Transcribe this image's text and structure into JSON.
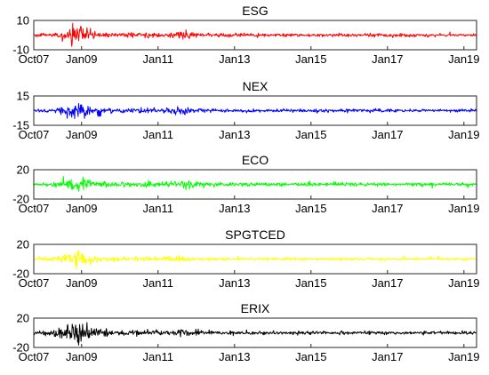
{
  "chart_data": [
    {
      "type": "line",
      "title": "ESG",
      "color": "#ff0000",
      "ylim": [
        -10,
        10
      ],
      "yticks": [
        "10",
        "-10"
      ],
      "xrange": [
        2007.75,
        2019.33
      ],
      "xticks": [
        {
          "value": 2007.75,
          "label": "Oct07"
        },
        {
          "value": 2009.0,
          "label": "Jan09"
        },
        {
          "value": 2011.0,
          "label": "Jan11"
        },
        {
          "value": 2013.0,
          "label": "Jan13"
        },
        {
          "value": 2015.0,
          "label": "Jan15"
        },
        {
          "value": 2017.0,
          "label": "Jan17"
        },
        {
          "value": 2019.0,
          "label": "Jan19"
        }
      ],
      "volatility_profile": [
        {
          "x": 2007.75,
          "amplitude": 1.0
        },
        {
          "x": 2008.3,
          "amplitude": 1.5
        },
        {
          "x": 2008.7,
          "amplitude": 5.5
        },
        {
          "x": 2008.95,
          "amplitude": 6.5
        },
        {
          "x": 2009.3,
          "amplitude": 3.0
        },
        {
          "x": 2009.8,
          "amplitude": 1.6
        },
        {
          "x": 2010.4,
          "amplitude": 1.8
        },
        {
          "x": 2011.1,
          "amplitude": 1.5
        },
        {
          "x": 2011.7,
          "amplitude": 3.5
        },
        {
          "x": 2012.2,
          "amplitude": 1.4
        },
        {
          "x": 2014.0,
          "amplitude": 1.0
        },
        {
          "x": 2016.5,
          "amplitude": 1.3
        },
        {
          "x": 2018.2,
          "amplitude": 1.0
        },
        {
          "x": 2019.33,
          "amplitude": 1.0
        }
      ]
    },
    {
      "type": "line",
      "title": "NEX",
      "color": "#0000ff",
      "ylim": [
        -15,
        15
      ],
      "yticks": [
        "15",
        "-15"
      ],
      "xrange": [
        2007.75,
        2019.33
      ],
      "xticks": [
        {
          "value": 2007.75,
          "label": "Oct07"
        },
        {
          "value": 2009.0,
          "label": "Jan09"
        },
        {
          "value": 2011.0,
          "label": "Jan11"
        },
        {
          "value": 2013.0,
          "label": "Jan13"
        },
        {
          "value": 2015.0,
          "label": "Jan15"
        },
        {
          "value": 2017.0,
          "label": "Jan17"
        },
        {
          "value": 2019.0,
          "label": "Jan19"
        }
      ],
      "volatility_profile": [
        {
          "x": 2007.75,
          "amplitude": 1.5
        },
        {
          "x": 2008.3,
          "amplitude": 2.5
        },
        {
          "x": 2008.7,
          "amplitude": 8.0
        },
        {
          "x": 2008.95,
          "amplitude": 10.0
        },
        {
          "x": 2009.3,
          "amplitude": 4.5
        },
        {
          "x": 2009.8,
          "amplitude": 2.5
        },
        {
          "x": 2010.4,
          "amplitude": 3.0
        },
        {
          "x": 2011.1,
          "amplitude": 2.5
        },
        {
          "x": 2011.7,
          "amplitude": 5.5
        },
        {
          "x": 2012.2,
          "amplitude": 2.0
        },
        {
          "x": 2014.0,
          "amplitude": 1.5
        },
        {
          "x": 2016.5,
          "amplitude": 2.0
        },
        {
          "x": 2018.2,
          "amplitude": 1.5
        },
        {
          "x": 2019.33,
          "amplitude": 1.5
        }
      ]
    },
    {
      "type": "line",
      "title": "ECO",
      "color": "#00ff00",
      "ylim": [
        -20,
        20
      ],
      "yticks": [
        "20",
        "-20"
      ],
      "xrange": [
        2007.75,
        2019.33
      ],
      "xticks": [
        {
          "value": 2007.75,
          "label": "Oct07"
        },
        {
          "value": 2009.0,
          "label": "Jan09"
        },
        {
          "value": 2011.0,
          "label": "Jan11"
        },
        {
          "value": 2013.0,
          "label": "Jan13"
        },
        {
          "value": 2015.0,
          "label": "Jan15"
        },
        {
          "value": 2017.0,
          "label": "Jan17"
        },
        {
          "value": 2019.0,
          "label": "Jan19"
        }
      ],
      "volatility_profile": [
        {
          "x": 2007.75,
          "amplitude": 2.5
        },
        {
          "x": 2008.3,
          "amplitude": 3.5
        },
        {
          "x": 2008.7,
          "amplitude": 9.0
        },
        {
          "x": 2008.95,
          "amplitude": 11.0
        },
        {
          "x": 2009.3,
          "amplitude": 6.0
        },
        {
          "x": 2009.8,
          "amplitude": 3.5
        },
        {
          "x": 2010.4,
          "amplitude": 4.0
        },
        {
          "x": 2011.1,
          "amplitude": 3.5
        },
        {
          "x": 2011.7,
          "amplitude": 6.5
        },
        {
          "x": 2012.2,
          "amplitude": 3.0
        },
        {
          "x": 2014.0,
          "amplitude": 2.5
        },
        {
          "x": 2016.5,
          "amplitude": 2.5
        },
        {
          "x": 2018.2,
          "amplitude": 2.0
        },
        {
          "x": 2019.33,
          "amplitude": 2.5
        }
      ]
    },
    {
      "type": "line",
      "title": "SPGTCED",
      "color": "#ffff00",
      "ylim": [
        -20,
        20
      ],
      "yticks": [
        "20",
        "-20"
      ],
      "xrange": [
        2007.75,
        2019.33
      ],
      "xticks": [
        {
          "value": 2007.75,
          "label": "Oct07"
        },
        {
          "value": 2009.0,
          "label": "Jan09"
        },
        {
          "value": 2011.0,
          "label": "Jan11"
        },
        {
          "value": 2013.0,
          "label": "Jan13"
        },
        {
          "value": 2015.0,
          "label": "Jan15"
        },
        {
          "value": 2017.0,
          "label": "Jan17"
        },
        {
          "value": 2019.0,
          "label": "Jan19"
        }
      ],
      "volatility_profile": [
        {
          "x": 2007.75,
          "amplitude": 2.0
        },
        {
          "x": 2008.3,
          "amplitude": 3.5
        },
        {
          "x": 2008.7,
          "amplitude": 10.0
        },
        {
          "x": 2008.95,
          "amplitude": 12.0
        },
        {
          "x": 2009.3,
          "amplitude": 6.0
        },
        {
          "x": 2009.8,
          "amplitude": 3.0
        },
        {
          "x": 2010.4,
          "amplitude": 3.0
        },
        {
          "x": 2011.1,
          "amplitude": 3.0
        },
        {
          "x": 2011.7,
          "amplitude": 4.5
        },
        {
          "x": 2012.2,
          "amplitude": 2.0
        },
        {
          "x": 2014.0,
          "amplitude": 1.8
        },
        {
          "x": 2016.5,
          "amplitude": 2.0
        },
        {
          "x": 2018.2,
          "amplitude": 1.5
        },
        {
          "x": 2019.33,
          "amplitude": 1.8
        }
      ]
    },
    {
      "type": "line",
      "title": "ERIX",
      "color": "#000000",
      "ylim": [
        -20,
        20
      ],
      "yticks": [
        "20",
        "-20"
      ],
      "xrange": [
        2007.75,
        2019.33
      ],
      "xticks": [
        {
          "value": 2007.75,
          "label": "Oct07"
        },
        {
          "value": 2009.0,
          "label": "Jan09"
        },
        {
          "value": 2011.0,
          "label": "Jan11"
        },
        {
          "value": 2013.0,
          "label": "Jan13"
        },
        {
          "value": 2015.0,
          "label": "Jan15"
        },
        {
          "value": 2017.0,
          "label": "Jan17"
        },
        {
          "value": 2019.0,
          "label": "Jan19"
        }
      ],
      "volatility_profile": [
        {
          "x": 2007.75,
          "amplitude": 3.0
        },
        {
          "x": 2008.3,
          "amplitude": 5.0
        },
        {
          "x": 2008.7,
          "amplitude": 12.0
        },
        {
          "x": 2008.95,
          "amplitude": 15.0
        },
        {
          "x": 2009.3,
          "amplitude": 7.0
        },
        {
          "x": 2009.8,
          "amplitude": 4.0
        },
        {
          "x": 2010.4,
          "amplitude": 4.0
        },
        {
          "x": 2011.1,
          "amplitude": 3.5
        },
        {
          "x": 2011.7,
          "amplitude": 5.0
        },
        {
          "x": 2012.2,
          "amplitude": 3.0
        },
        {
          "x": 2014.0,
          "amplitude": 2.5
        },
        {
          "x": 2016.5,
          "amplitude": 2.5
        },
        {
          "x": 2018.2,
          "amplitude": 2.0
        },
        {
          "x": 2019.33,
          "amplitude": 2.5
        }
      ]
    }
  ]
}
